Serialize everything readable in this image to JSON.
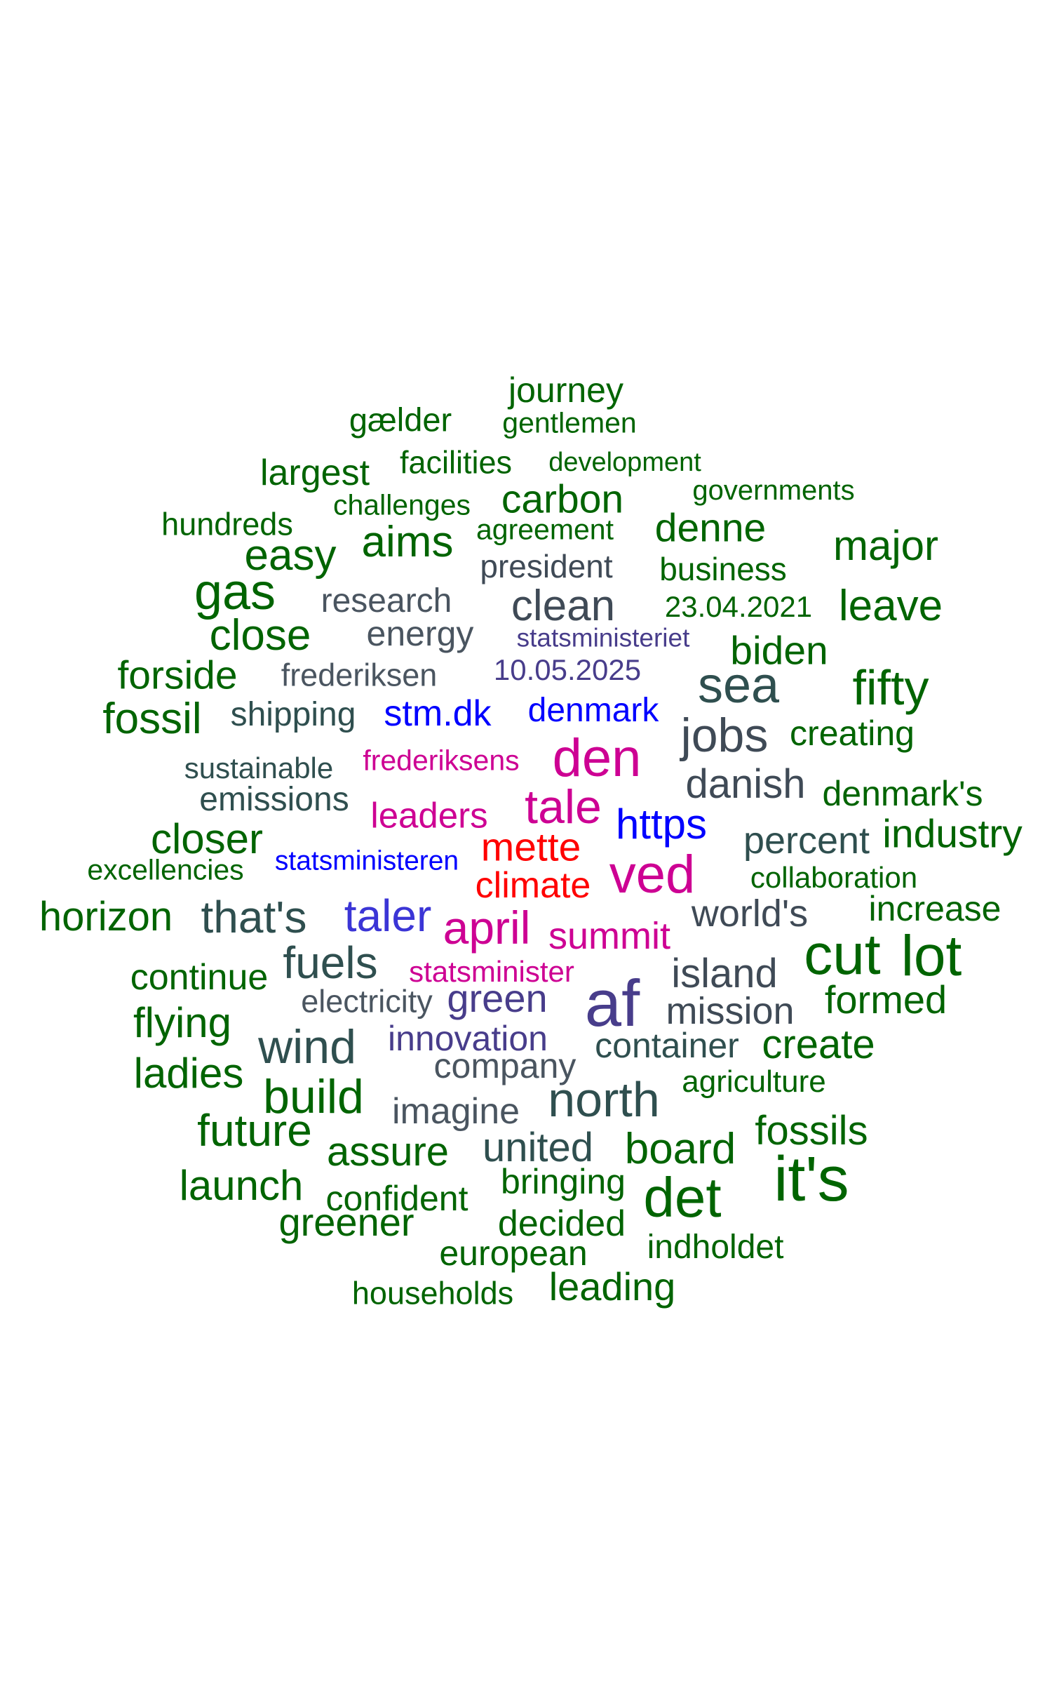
{
  "colors": {
    "green": "#006400",
    "dark_green": "#2f4f4f",
    "slate": "#3f4a56",
    "gray_slate": "#4a5560",
    "navy": "#483d8b",
    "blue": "#0000ff",
    "indigo": "#3b35d6",
    "magenta": "#cd0093",
    "red": "#ff0000"
  },
  "words": [
    "journey",
    "gælder",
    "gentlemen",
    "largest",
    "facilities",
    "development",
    "hundreds",
    "challenges",
    "carbon",
    "governments",
    "easy",
    "aims",
    "agreement",
    "denne",
    "major",
    "gas",
    "president",
    "business",
    "research",
    "clean",
    "23.04.2021",
    "leave",
    "close",
    "energy",
    "statsministeriet",
    "biden",
    "forside",
    "frederiksen",
    "10.05.2025",
    "sea",
    "fifty",
    "fossil",
    "shipping",
    "stm.dk",
    "denmark",
    "jobs",
    "creating",
    "den",
    "sustainable",
    "frederiksens",
    "emissions",
    "leaders",
    "tale",
    "danish",
    "denmark's",
    "closer",
    "https",
    "percent",
    "industry",
    "mette",
    "excellencies",
    "statsministeren",
    "ved",
    "collaboration",
    "climate",
    "horizon",
    "that's",
    "taler",
    "april",
    "summit",
    "world's",
    "increase",
    "cut",
    "lot",
    "fuels",
    "continue",
    "statsminister",
    "island",
    "af",
    "electricity",
    "green",
    "formed",
    "flying",
    "mission",
    "wind",
    "innovation",
    "container",
    "create",
    "ladies",
    "company",
    "build",
    "north",
    "agriculture",
    "imagine",
    "future",
    "fossils",
    "assure",
    "united",
    "board",
    "it's",
    "launch",
    "bringing",
    "confident",
    "det",
    "greener",
    "decided",
    "indholdet",
    "european",
    "households",
    "leading"
  ]
}
